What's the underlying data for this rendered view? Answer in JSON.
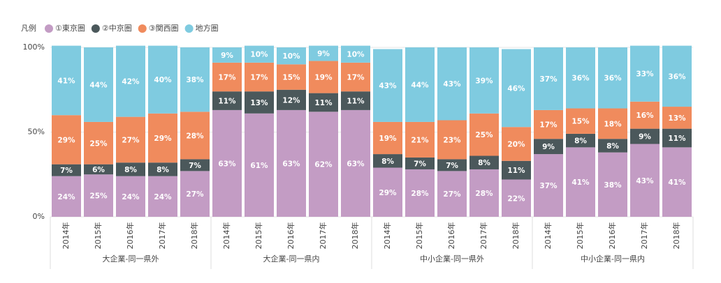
{
  "chart_data": {
    "type": "stacked-bar",
    "legend_title": "凡例",
    "groups": [
      {
        "name": "大企業-同一県外",
        "categories": [
          "2014年",
          "2015年",
          "2016年",
          "2017年",
          "2018年"
        ]
      },
      {
        "name": "大企業-同一県内",
        "categories": [
          "2014年",
          "2015年",
          "2016年",
          "2017年",
          "2018年"
        ]
      },
      {
        "name": "中小企業-同一県外",
        "categories": [
          "2014年",
          "2015年",
          "2016年",
          "2017年",
          "2018年"
        ]
      },
      {
        "name": "中小企業-同一県内",
        "categories": [
          "2014年",
          "2015年",
          "2016年",
          "2017年",
          "2018年"
        ]
      }
    ],
    "series": [
      {
        "name": "①東京圏",
        "color": "#c39cc4",
        "values": [
          24,
          25,
          24,
          24,
          27,
          63,
          61,
          63,
          62,
          63,
          29,
          28,
          27,
          28,
          22,
          37,
          41,
          38,
          43,
          41
        ],
        "value_labels": [
          "24%",
          "25%",
          "24%",
          "24%",
          "27%",
          "63%",
          "61%",
          "63%",
          "62%",
          "63%",
          "29%",
          "28%",
          "27%",
          "28%",
          "22%",
          "37%",
          "41%",
          "38%",
          "43%",
          "41%"
        ]
      },
      {
        "name": "②中京圏",
        "color": "#4b585b",
        "values": [
          7,
          6,
          8,
          8,
          7,
          11,
          13,
          12,
          11,
          11,
          8,
          7,
          7,
          8,
          11,
          9,
          8,
          8,
          9,
          11
        ],
        "value_labels": [
          "7%",
          "6%",
          "8%",
          "8%",
          "7%",
          "11%",
          "13%",
          "12%",
          "11%",
          "11%",
          "8%",
          "7%",
          "7%",
          "8%",
          "11%",
          "9%",
          "8%",
          "8%",
          "9%",
          "11%"
        ]
      },
      {
        "name": "③関西圏",
        "color": "#f08b5d",
        "values": [
          29,
          25,
          27,
          29,
          28,
          17,
          17,
          15,
          19,
          17,
          19,
          21,
          23,
          25,
          20,
          17,
          15,
          18,
          16,
          13
        ],
        "value_labels": [
          "29%",
          "25%",
          "27%",
          "29%",
          "28%",
          "17%",
          "17%",
          "15%",
          "19%",
          "17%",
          "19%",
          "21%",
          "23%",
          "25%",
          "20%",
          "17%",
          "15%",
          "18%",
          "16%",
          "13%"
        ]
      },
      {
        "name": "地方圏",
        "color": "#7fcbe0",
        "values": [
          41,
          44,
          42,
          40,
          38,
          9,
          10,
          10,
          9,
          10,
          43,
          44,
          43,
          39,
          46,
          37,
          36,
          36,
          33,
          36
        ],
        "value_labels": [
          "41%",
          "44%",
          "42%",
          "40%",
          "38%",
          "9%",
          "10%",
          "10%",
          "9%",
          "10%",
          "43%",
          "44%",
          "43%",
          "39%",
          "46%",
          "37%",
          "36%",
          "36%",
          "33%",
          "36%"
        ]
      }
    ],
    "ylim": [
      0,
      100
    ],
    "yticks": [
      {
        "value": 0,
        "label": "0%"
      },
      {
        "value": 50,
        "label": "50%"
      },
      {
        "value": 100,
        "label": "100%"
      }
    ],
    "grid": true
  }
}
